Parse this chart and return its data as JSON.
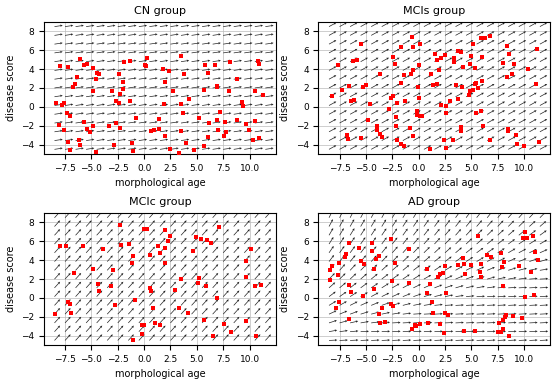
{
  "titles": [
    "CN group",
    "MCIs group",
    "MCIc group",
    "AD group"
  ],
  "xlabel": "morphological age",
  "ylabel": "disease score",
  "xlim": [
    -9.5,
    12.5
  ],
  "ylim": [
    -5,
    9
  ],
  "xticks": [
    -7.5,
    -5.0,
    -2.5,
    0.0,
    2.5,
    5.0,
    7.5,
    10.0
  ],
  "yticks": [
    -4,
    -2,
    0,
    2,
    4,
    6,
    8
  ],
  "grid_color": "#bbbbbb",
  "arrow_color": "#222222",
  "scatter_color": "red",
  "figsize": [
    5.56,
    3.85
  ],
  "dpi": 100,
  "seeds": [
    42,
    123,
    7,
    99
  ],
  "n_scatter": [
    100,
    110,
    65,
    90
  ]
}
